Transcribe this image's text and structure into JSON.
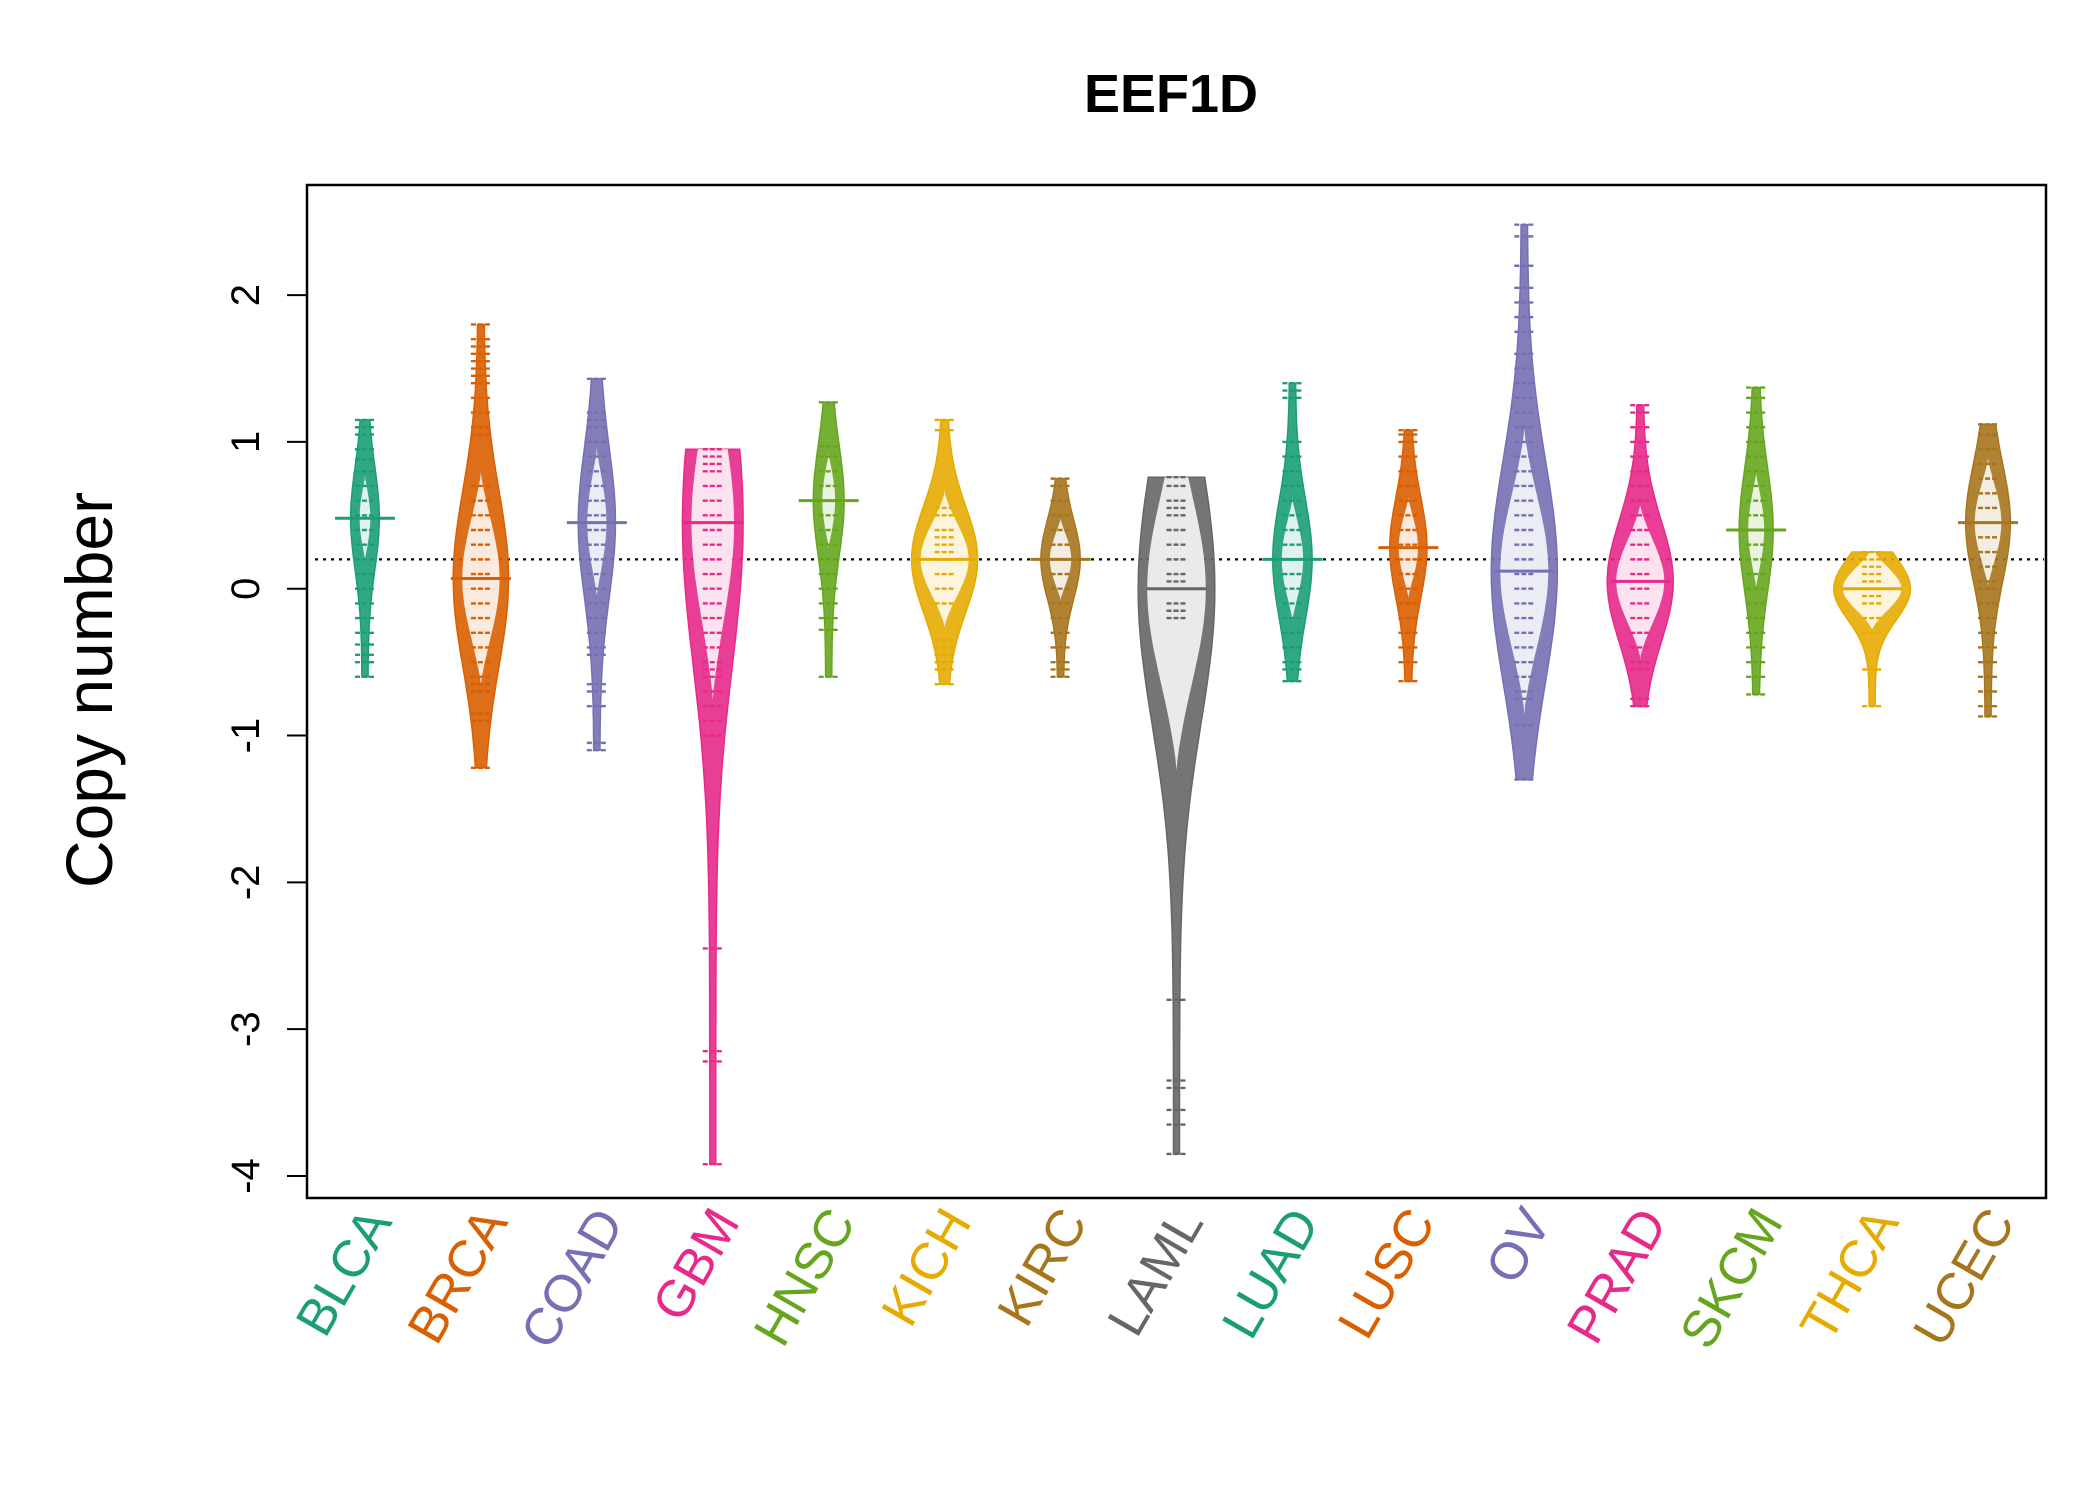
{
  "chart_data": {
    "type": "beanplot",
    "title": "EEF1D",
    "xlabel": "",
    "ylabel": "Copy number",
    "ylim": [
      -4.15,
      2.75
    ],
    "yticks": [
      -4,
      -3,
      -2,
      -1,
      0,
      1,
      2
    ],
    "ytick_labels": [
      "-4",
      "-3",
      "-2",
      "-1",
      "0",
      "1",
      "2"
    ],
    "overall_mean_line": 0.2,
    "grid": false,
    "legend": "none",
    "categories": [
      "BLCA",
      "BRCA",
      "COAD",
      "GBM",
      "HNSC",
      "KICH",
      "KIRC",
      "LAML",
      "LUAD",
      "LUSC",
      "OV",
      "PRAD",
      "SKCM",
      "THCA",
      "UCEC"
    ],
    "series": [
      {
        "group": "BLCA",
        "color": "#1B9E77",
        "mean": 0.48,
        "min": -0.6,
        "max": 1.15,
        "peak_width": 0.1,
        "points": [
          1.15,
          1.1,
          1.05,
          0.95,
          0.88,
          0.8,
          0.7,
          0.6,
          0.5,
          0.4,
          0.3,
          0.2,
          0.1,
          0.0,
          -0.1,
          -0.2,
          -0.3,
          -0.38,
          -0.45,
          -0.5,
          -0.6
        ]
      },
      {
        "group": "BRCA",
        "color": "#D95F02",
        "mean": 0.07,
        "min": -1.22,
        "max": 1.8,
        "peak_width": 0.35,
        "points": [
          1.8,
          1.7,
          1.65,
          1.6,
          1.55,
          1.5,
          1.45,
          1.4,
          1.3,
          1.2,
          1.1,
          1.05,
          0.7,
          0.6,
          0.5,
          0.4,
          0.3,
          0.2,
          0.1,
          0.0,
          -0.1,
          -0.2,
          -0.3,
          -0.4,
          -0.5,
          -0.6,
          -0.65,
          -0.7,
          -0.85,
          -0.9,
          -1.22
        ]
      },
      {
        "group": "COAD",
        "color": "#7570B3",
        "mean": 0.45,
        "min": -1.1,
        "max": 1.43,
        "peak_width": 0.18,
        "points": [
          1.43,
          1.2,
          1.15,
          1.1,
          1.0,
          0.9,
          0.8,
          0.7,
          0.6,
          0.5,
          0.4,
          0.3,
          0.2,
          0.1,
          0.0,
          -0.1,
          -0.2,
          -0.3,
          -0.4,
          -0.45,
          -0.65,
          -0.7,
          -0.8,
          -1.05,
          -1.1
        ]
      },
      {
        "group": "GBM",
        "color": "#E7298A",
        "mean": 0.45,
        "min": -3.92,
        "max": 0.95,
        "peak_width": 0.4,
        "points": [
          0.95,
          0.9,
          0.85,
          0.8,
          0.7,
          0.6,
          0.5,
          0.4,
          0.3,
          0.2,
          0.1,
          0.0,
          -0.1,
          -0.2,
          -0.3,
          -0.4,
          -0.5,
          -0.55,
          -0.6,
          -0.7,
          -0.8,
          -0.9,
          -1.0,
          -2.45,
          -3.15,
          -3.22,
          -3.92
        ]
      },
      {
        "group": "HNSC",
        "color": "#66A61E",
        "mean": 0.6,
        "min": -0.6,
        "max": 1.27,
        "peak_width": 0.12,
        "points": [
          1.27,
          0.97,
          0.9,
          0.8,
          0.7,
          0.6,
          0.5,
          0.4,
          0.3,
          0.2,
          0.1,
          0.0,
          -0.1,
          -0.2,
          -0.28,
          -0.6
        ]
      },
      {
        "group": "KICH",
        "color": "#E6AB02",
        "mean": 0.2,
        "min": -0.65,
        "max": 1.15,
        "peak_width": 0.45,
        "points": [
          1.15,
          1.08,
          0.55,
          0.5,
          0.4,
          0.35,
          0.3,
          0.25,
          0.2,
          0.1,
          0.0,
          -0.1,
          -0.35,
          -0.4,
          -0.45,
          -0.5,
          -0.55,
          -0.65
        ]
      },
      {
        "group": "KIRC",
        "color": "#A6761D",
        "mean": 0.2,
        "min": -0.6,
        "max": 0.75,
        "peak_width": 0.2,
        "points": [
          0.75,
          0.7,
          0.6,
          0.5,
          0.4,
          0.3,
          0.2,
          0.1,
          0.0,
          -0.1,
          -0.2,
          -0.3,
          -0.4,
          -0.5,
          -0.55,
          -0.6
        ]
      },
      {
        "group": "LAML",
        "color": "#666666",
        "mean": 0.0,
        "min": -3.85,
        "max": 0.76,
        "peak_width": 0.55,
        "points": [
          0.76,
          0.7,
          0.6,
          0.55,
          0.5,
          0.4,
          0.3,
          0.2,
          0.1,
          0.05,
          0.0,
          -0.1,
          -0.15,
          -0.2,
          -2.8,
          -3.35,
          -3.4,
          -3.55,
          -3.65,
          -3.85
        ]
      },
      {
        "group": "LUAD",
        "color": "#1B9E77",
        "mean": 0.2,
        "min": -0.63,
        "max": 1.4,
        "peak_width": 0.2,
        "points": [
          1.4,
          1.35,
          1.3,
          1.0,
          0.9,
          0.8,
          0.7,
          0.6,
          0.5,
          0.4,
          0.3,
          0.2,
          0.1,
          0.0,
          -0.1,
          -0.2,
          -0.3,
          -0.4,
          -0.5,
          -0.55,
          -0.63
        ]
      },
      {
        "group": "LUSC",
        "color": "#D95F02",
        "mean": 0.28,
        "min": -0.63,
        "max": 1.08,
        "peak_width": 0.18,
        "points": [
          1.08,
          1.05,
          1.0,
          0.9,
          0.8,
          0.7,
          0.6,
          0.5,
          0.4,
          0.3,
          0.2,
          0.1,
          0.0,
          -0.1,
          -0.2,
          -0.3,
          -0.4,
          -0.5,
          -0.63
        ]
      },
      {
        "group": "OV",
        "color": "#7570B3",
        "mean": 0.12,
        "min": -1.3,
        "max": 2.48,
        "peak_width": 0.45,
        "points": [
          2.48,
          2.4,
          2.2,
          2.05,
          1.95,
          1.85,
          1.75,
          1.6,
          1.5,
          1.4,
          1.3,
          1.2,
          1.1,
          1.0,
          0.9,
          0.8,
          0.7,
          0.6,
          0.5,
          0.4,
          0.3,
          0.2,
          0.1,
          0.0,
          -0.1,
          -0.2,
          -0.3,
          -0.4,
          -0.5,
          -0.6,
          -0.7,
          -0.75,
          -0.93,
          -1.3
        ]
      },
      {
        "group": "PRAD",
        "color": "#E7298A",
        "mean": 0.05,
        "min": -0.8,
        "max": 1.25,
        "peak_width": 0.45,
        "points": [
          1.25,
          1.2,
          1.1,
          1.0,
          0.9,
          0.8,
          0.7,
          0.6,
          0.5,
          0.4,
          0.3,
          0.2,
          0.1,
          0.0,
          -0.1,
          -0.2,
          -0.3,
          -0.4,
          -0.5,
          -0.55,
          -0.75,
          -0.8
        ]
      },
      {
        "group": "SKCM",
        "color": "#66A61E",
        "mean": 0.4,
        "min": -0.72,
        "max": 1.37,
        "peak_width": 0.15,
        "points": [
          1.37,
          1.3,
          1.2,
          1.1,
          1.0,
          0.9,
          0.8,
          0.7,
          0.6,
          0.5,
          0.4,
          0.3,
          0.2,
          0.1,
          0.0,
          -0.1,
          -0.2,
          -0.3,
          -0.4,
          -0.5,
          -0.6,
          -0.72
        ]
      },
      {
        "group": "THCA",
        "color": "#E6AB02",
        "mean": 0.0,
        "min": -0.8,
        "max": 0.25,
        "peak_width": 0.55,
        "points": [
          0.25,
          0.2,
          0.15,
          0.1,
          0.05,
          0.0,
          -0.05,
          -0.1,
          -0.2,
          -0.3,
          -0.55,
          -0.8
        ]
      },
      {
        "group": "UCEC",
        "color": "#A6761D",
        "mean": 0.45,
        "min": -0.87,
        "max": 1.12,
        "peak_width": 0.25,
        "points": [
          1.12,
          1.05,
          0.95,
          0.85,
          0.75,
          0.65,
          0.55,
          0.45,
          0.35,
          0.25,
          0.15,
          0.05,
          0.0,
          -0.1,
          -0.2,
          -0.3,
          -0.4,
          -0.5,
          -0.6,
          -0.7,
          -0.8,
          -0.87
        ]
      }
    ]
  }
}
